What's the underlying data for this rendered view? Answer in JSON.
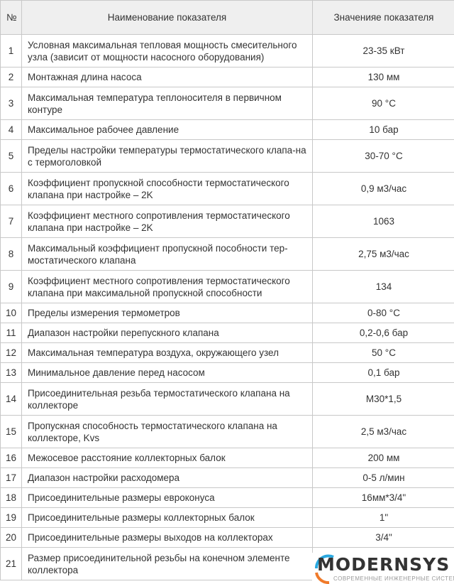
{
  "header": {
    "num": "№",
    "name": "Наименование показателя",
    "value": "Значенияе показателя"
  },
  "rows": [
    {
      "n": "1",
      "name": "Условная максимальная тепловая мощность смесительного узла (зависит от мощности насосного оборудования)",
      "value": "23-35 кВт"
    },
    {
      "n": "2",
      "name": "Монтажная длина насоса",
      "value": "130 мм"
    },
    {
      "n": "3",
      "name": "Максимальная температура теплоносителя в первичном контуре",
      "value": "90 °С"
    },
    {
      "n": "4",
      "name": "Максимальное рабочее давление",
      "value": "10 бар"
    },
    {
      "n": "5",
      "name": "Пределы настройки температуры термостатического клапа-на с термоголовкой",
      "value": "30-70 °С"
    },
    {
      "n": "6",
      "name": "Коэффициент пропускной способности термостатического клапана при настройке – 2K",
      "value": "0,9 м3/час"
    },
    {
      "n": "7",
      "name": "Коэффициент местного сопротивления термостатического клапана при настройке – 2K",
      "value": "1063"
    },
    {
      "n": "8",
      "name": "Максимальный коэффициент пропускной пособности тер-мостатического клапана",
      "value": "2,75 м3/час"
    },
    {
      "n": "9",
      "name": "Коэффициент местного сопротивления термостатического клапана при максимальной пропускной способности",
      "value": "134"
    },
    {
      "n": "10",
      "name": "Пределы измерения термометров",
      "value": "0-80 °С"
    },
    {
      "n": "11",
      "name": "Диапазон настройки перепускного клапана",
      "value": "0,2-0,6 бар"
    },
    {
      "n": "12",
      "name": "Максимальная температура воздуха, окружающего узел",
      "value": "50 °С"
    },
    {
      "n": "13",
      "name": "Минимальное давление перед насосом",
      "value": "0,1 бар"
    },
    {
      "n": "14",
      "name": "Присоединительная резьба термостатического клапана на коллекторе",
      "value": "М30*1,5"
    },
    {
      "n": "15",
      "name": "Пропускная способность термостатического клапана на коллекторе, Kvs",
      "value": "2,5 м3/час"
    },
    {
      "n": "16",
      "name": "Межосевое расстояние коллекторных балок",
      "value": "200 мм"
    },
    {
      "n": "17",
      "name": "Диапазон настройки расходомера",
      "value": "0-5 л/мин"
    },
    {
      "n": "18",
      "name": "Присоединительные размеры евроконуса",
      "value": "16мм*3/4\""
    },
    {
      "n": "19",
      "name": "Присоединительные размеры коллекторных балок",
      "value": "1\""
    },
    {
      "n": "20",
      "name": "Присоединительные размеры выходов на коллекторах",
      "value": "3/4\""
    },
    {
      "n": "21",
      "name": "Размер присоединительной резьбы на конечном элементе коллектора",
      "value": ""
    }
  ],
  "logo": {
    "word": "MODERNSYS",
    "tagline": "СОВРЕМЕННЫЕ ИНЖЕНЕРНЫЕ СИСТЕМЫ",
    "colors": {
      "blue": "#29a8e0",
      "orange": "#f07a2a"
    }
  }
}
